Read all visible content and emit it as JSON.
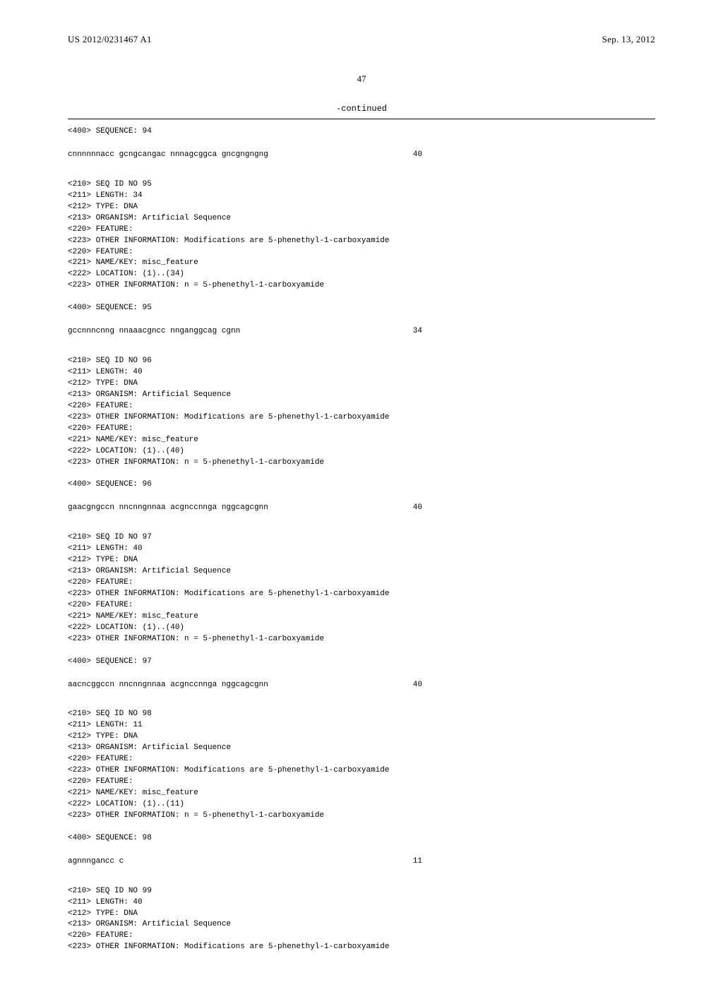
{
  "header": {
    "pub_number": "US 2012/0231467 A1",
    "pub_date": "Sep. 13, 2012"
  },
  "page_number": "47",
  "continued_label": "-continued",
  "records": [
    {
      "pre_lines": [
        "<400> SEQUENCE: 94"
      ],
      "sequence_text": "cnnnnnnacc gcngcangac nnnagcggca gncgngngng",
      "sequence_len": "40"
    },
    {
      "pre_lines": [
        "<210> SEQ ID NO 95",
        "<211> LENGTH: 34",
        "<212> TYPE: DNA",
        "<213> ORGANISM: Artificial Sequence",
        "<220> FEATURE:",
        "<223> OTHER INFORMATION: Modifications are 5-phenethyl-1-carboxyamide",
        "<220> FEATURE:",
        "<221> NAME/KEY: misc_feature",
        "<222> LOCATION: (1)..(34)",
        "<223> OTHER INFORMATION: n = 5-phenethyl-1-carboxyamide",
        "",
        "<400> SEQUENCE: 95"
      ],
      "sequence_text": "gccnnncnng nnaaacgncc nnganggcag cgnn",
      "sequence_len": "34"
    },
    {
      "pre_lines": [
        "<210> SEQ ID NO 96",
        "<211> LENGTH: 40",
        "<212> TYPE: DNA",
        "<213> ORGANISM: Artificial Sequence",
        "<220> FEATURE:",
        "<223> OTHER INFORMATION: Modifications are 5-phenethyl-1-carboxyamide",
        "<220> FEATURE:",
        "<221> NAME/KEY: misc_feature",
        "<222> LOCATION: (1)..(40)",
        "<223> OTHER INFORMATION: n = 5-phenethyl-1-carboxyamide",
        "",
        "<400> SEQUENCE: 96"
      ],
      "sequence_text": "gaacgngccn nncnngnnaa acgnccnnga nggcagcgnn",
      "sequence_len": "40"
    },
    {
      "pre_lines": [
        "<210> SEQ ID NO 97",
        "<211> LENGTH: 40",
        "<212> TYPE: DNA",
        "<213> ORGANISM: Artificial Sequence",
        "<220> FEATURE:",
        "<223> OTHER INFORMATION: Modifications are 5-phenethyl-1-carboxyamide",
        "<220> FEATURE:",
        "<221> NAME/KEY: misc_feature",
        "<222> LOCATION: (1)..(40)",
        "<223> OTHER INFORMATION: n = 5-phenethyl-1-carboxyamide",
        "",
        "<400> SEQUENCE: 97"
      ],
      "sequence_text": "aacncggccn nncnngnnaa acgnccnnga nggcagcgnn",
      "sequence_len": "40"
    },
    {
      "pre_lines": [
        "<210> SEQ ID NO 98",
        "<211> LENGTH: 11",
        "<212> TYPE: DNA",
        "<213> ORGANISM: Artificial Sequence",
        "<220> FEATURE:",
        "<223> OTHER INFORMATION: Modifications are 5-phenethyl-1-carboxyamide",
        "<220> FEATURE:",
        "<221> NAME/KEY: misc_feature",
        "<222> LOCATION: (1)..(11)",
        "<223> OTHER INFORMATION: n = 5-phenethyl-1-carboxyamide",
        "",
        "<400> SEQUENCE: 98"
      ],
      "sequence_text": "agnnngancc c",
      "sequence_len": "11"
    },
    {
      "pre_lines": [
        "<210> SEQ ID NO 99",
        "<211> LENGTH: 40",
        "<212> TYPE: DNA",
        "<213> ORGANISM: Artificial Sequence",
        "<220> FEATURE:",
        "<223> OTHER INFORMATION: Modifications are 5-phenethyl-1-carboxyamide"
      ],
      "sequence_text": "",
      "sequence_len": ""
    }
  ]
}
